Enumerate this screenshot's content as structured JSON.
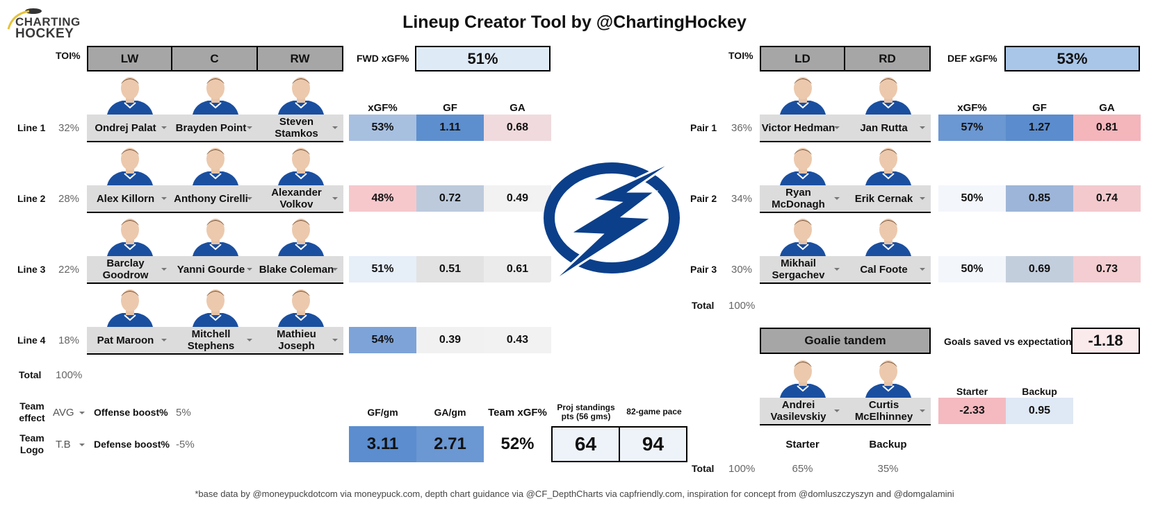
{
  "title": "Lineup Creator Tool by @ChartingHockey",
  "brand": {
    "line1": "CHARTING",
    "line2": "HOCKEY"
  },
  "forwards": {
    "toi_label": "TOI%",
    "headers": [
      "LW",
      "C",
      "RW"
    ],
    "xgf_label": "FWD xGF%",
    "xgf_value": "51%",
    "stat_headers": [
      "xGF%",
      "GF",
      "GA"
    ],
    "lines": [
      {
        "label": "Line 1",
        "toi": "32%",
        "players": [
          "Ondrej Palat",
          "Brayden Point",
          "Steven Stamkos"
        ],
        "xgf": "53%",
        "gf": "1.11",
        "ga": "0.68"
      },
      {
        "label": "Line 2",
        "toi": "28%",
        "players": [
          "Alex Killorn",
          "Anthony Cirelli",
          "Alexander Volkov"
        ],
        "xgf": "48%",
        "gf": "0.72",
        "ga": "0.49"
      },
      {
        "label": "Line 3",
        "toi": "22%",
        "players": [
          "Barclay Goodrow",
          "Yanni Gourde",
          "Blake Coleman"
        ],
        "xgf": "51%",
        "gf": "0.51",
        "ga": "0.61"
      },
      {
        "label": "Line 4",
        "toi": "18%",
        "players": [
          "Pat Maroon",
          "Mitchell Stephens",
          "Mathieu Joseph"
        ],
        "xgf": "54%",
        "gf": "0.39",
        "ga": "0.43"
      }
    ],
    "total_label": "Total",
    "total_value": "100%"
  },
  "defense": {
    "toi_label": "TOI%",
    "headers": [
      "LD",
      "RD"
    ],
    "xgf_label": "DEF xGF%",
    "xgf_value": "53%",
    "stat_headers": [
      "xGF%",
      "GF",
      "GA"
    ],
    "pairs": [
      {
        "label": "Pair 1",
        "toi": "36%",
        "players": [
          "Victor Hedman",
          "Jan Rutta"
        ],
        "xgf": "57%",
        "gf": "1.27",
        "ga": "0.81"
      },
      {
        "label": "Pair 2",
        "toi": "34%",
        "players": [
          "Ryan McDonagh",
          "Erik Cernak"
        ],
        "xgf": "50%",
        "gf": "0.85",
        "ga": "0.74"
      },
      {
        "label": "Pair 3",
        "toi": "30%",
        "players": [
          "Mikhail Sergachev",
          "Cal Foote"
        ],
        "xgf": "50%",
        "gf": "0.69",
        "ga": "0.73"
      }
    ],
    "total_label": "Total",
    "total_value": "100%"
  },
  "goalies": {
    "header": "Goalie tandem",
    "gsax_label": "Goals saved vs expectation",
    "gsax_value": "-1.18",
    "stat_headers": [
      "Starter",
      "Backup"
    ],
    "players": [
      "Andrei Vasilevskiy",
      "Curtis McElhinney"
    ],
    "starter_value": "-2.33",
    "backup_value": "0.95",
    "role_labels": [
      "Starter",
      "Backup"
    ],
    "total_label": "Total",
    "total_value": "100%",
    "starter_pct": "65%",
    "backup_pct": "35%"
  },
  "team": {
    "effect_label": "Team effect",
    "effect_value": "AVG",
    "logo_label": "Team Logo",
    "logo_value": "T.B",
    "offense_label": "Offense boost%",
    "offense_value": "5%",
    "defense_label": "Defense boost%",
    "defense_value": "-5%",
    "gf_label": "GF/gm",
    "gf_value": "3.11",
    "ga_label": "GA/gm",
    "ga_value": "2.71",
    "xgf_label": "Team xGF%",
    "xgf_value": "52%",
    "standings_label": "Proj standings pts (56 gms)",
    "standings_value": "64",
    "pace_label": "82-game pace",
    "pace_value": "94"
  },
  "footnote": "*base data by @moneypuckdotcom via moneypuck.com, depth chart guidance via @CF_DepthCharts via capfriendly.com, inspiration for concept from @domluszczyszyn and @domgalamini",
  "colors": {
    "header_gray": "#a6a6a6",
    "dropdown_gray": "#dcdcdc",
    "lightning_blue": "#0b3f8a",
    "jersey_blue": "#1a4fa0"
  }
}
